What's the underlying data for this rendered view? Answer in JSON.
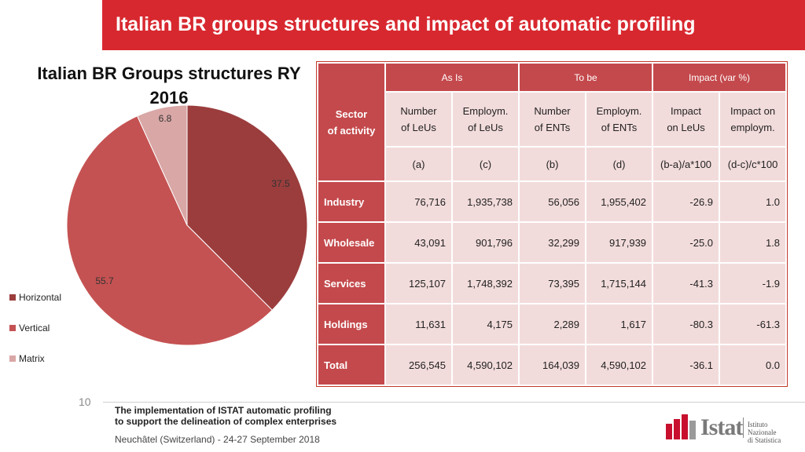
{
  "header": {
    "title": "Italian BR groups structures and impact of automatic profiling"
  },
  "chart_data": {
    "type": "pie",
    "title": "Italian BR Groups structures RY 2016",
    "title_lines": [
      "Italian BR Groups structures RY",
      "2016"
    ],
    "slices": [
      {
        "name": "Horizontal",
        "value": 37.5,
        "label": "37.5",
        "color": "#9b3d3d"
      },
      {
        "name": "Vertical",
        "value": 55.7,
        "label": "55.7",
        "color": "#c55252"
      },
      {
        "name": "Matrix",
        "value": 6.8,
        "label": "6.8",
        "color": "#d9a7a6"
      }
    ],
    "legend_position": "left"
  },
  "table": {
    "sector_header": [
      "Sector",
      "of activity"
    ],
    "groups": [
      "As Is",
      "To be",
      "Impact (var %)"
    ],
    "columns": [
      {
        "label": [
          "Number",
          "of LeUs"
        ],
        "code": "(a)"
      },
      {
        "label": [
          "Employm.",
          "of LeUs"
        ],
        "code": "(c)"
      },
      {
        "label": [
          "Number",
          "of ENTs"
        ],
        "code": "(b)"
      },
      {
        "label": [
          "Employm.",
          "of ENTs"
        ],
        "code": "(d)"
      },
      {
        "label": [
          "Impact",
          "on LeUs"
        ],
        "code": "(b-a)/a*100"
      },
      {
        "label": [
          "Impact on",
          "employm."
        ],
        "code": "(d-c)/c*100"
      }
    ],
    "rows": [
      {
        "sector": "Industry",
        "values": [
          "76,716",
          "1,935,738",
          "56,056",
          "1,955,402",
          "-26.9",
          "1.0"
        ]
      },
      {
        "sector": "Wholesale",
        "values": [
          "43,091",
          "901,796",
          "32,299",
          "917,939",
          "-25.0",
          "1.8"
        ]
      },
      {
        "sector": "Services",
        "values": [
          "125,107",
          "1,748,392",
          "73,395",
          "1,715,144",
          "-41.3",
          "-1.9"
        ]
      },
      {
        "sector": "Holdings",
        "values": [
          "11,631",
          "4,175",
          "2,289",
          "1,617",
          "-80.3",
          "-61.3"
        ]
      },
      {
        "sector": "Total",
        "values": [
          "256,545",
          "4,590,102",
          "164,039",
          "4,590,102",
          "-36.1",
          "0.0"
        ]
      }
    ]
  },
  "footer": {
    "page_number": "10",
    "line1": "The implementation of ISTAT automatic profiling",
    "line2": "to support the delineation of complex enterprises",
    "line3": "Neuchâtel (Switzerland) - 24-27 September 2018"
  },
  "logo": {
    "word": "Istat",
    "sub1": "Istituto Nazionale",
    "sub2": "di Statistica",
    "icon": "istat-bars-icon"
  }
}
